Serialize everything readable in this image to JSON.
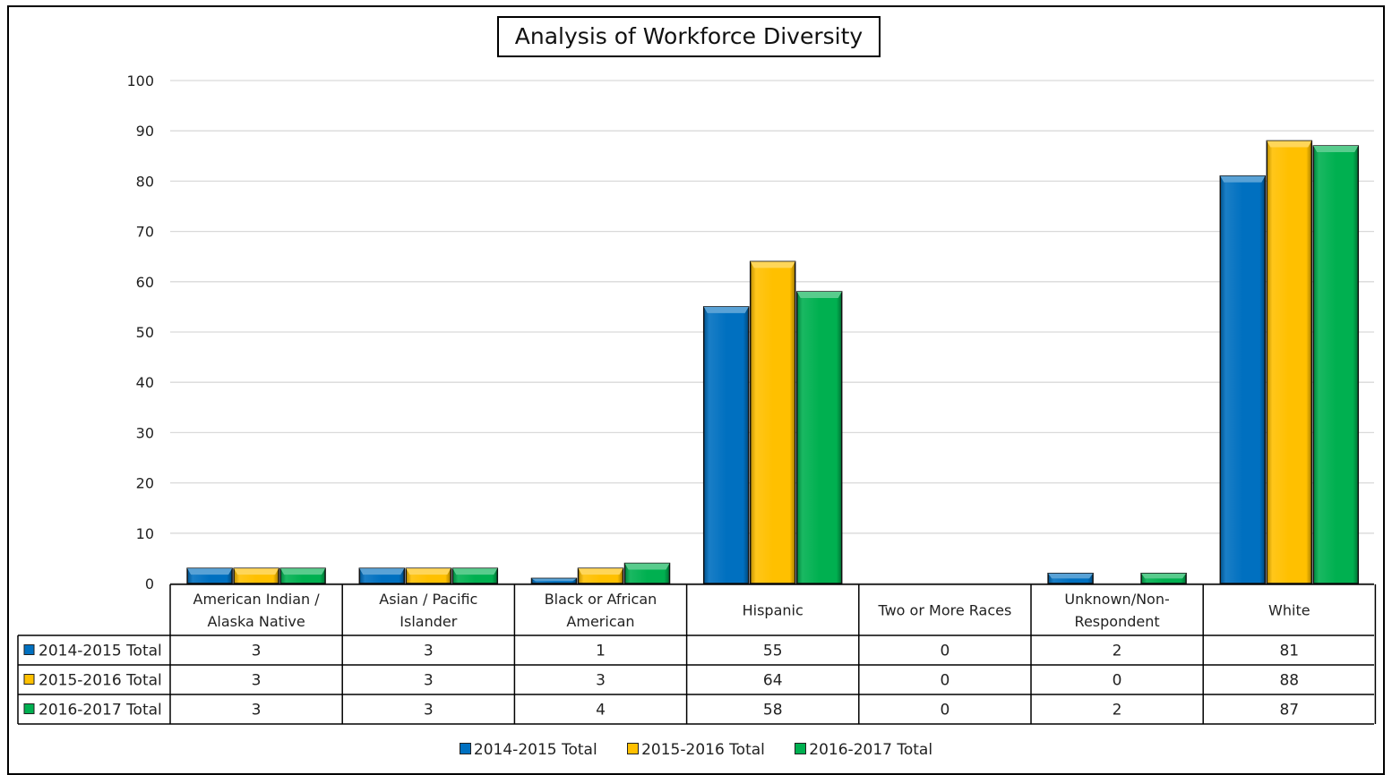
{
  "chart_data": {
    "type": "bar",
    "title": "Analysis of Workforce Diversity",
    "categories": [
      [
        "American Indian /",
        "Alaska Native"
      ],
      [
        "Asian / Pacific",
        "Islander"
      ],
      [
        "Black or African",
        "American"
      ],
      [
        "Hispanic"
      ],
      [
        "Two or More Races"
      ],
      [
        "Unknown/Non-",
        "Respondent"
      ],
      [
        "White"
      ]
    ],
    "series": [
      {
        "name": "2014-2015 Total",
        "color": "#0070c0",
        "values": [
          3,
          3,
          1,
          55,
          0,
          2,
          81
        ]
      },
      {
        "name": "2015-2016 Total",
        "color": "#ffc000",
        "values": [
          3,
          3,
          3,
          64,
          0,
          0,
          88
        ]
      },
      {
        "name": "2016-2017 Total",
        "color": "#00b050",
        "values": [
          3,
          3,
          4,
          58,
          0,
          2,
          87
        ]
      }
    ],
    "ylim": [
      0,
      100
    ],
    "yticks": [
      0,
      10,
      20,
      30,
      40,
      50,
      60,
      70,
      80,
      90,
      100
    ],
    "grid": true,
    "legend_position": "bottom",
    "data_table": true
  }
}
